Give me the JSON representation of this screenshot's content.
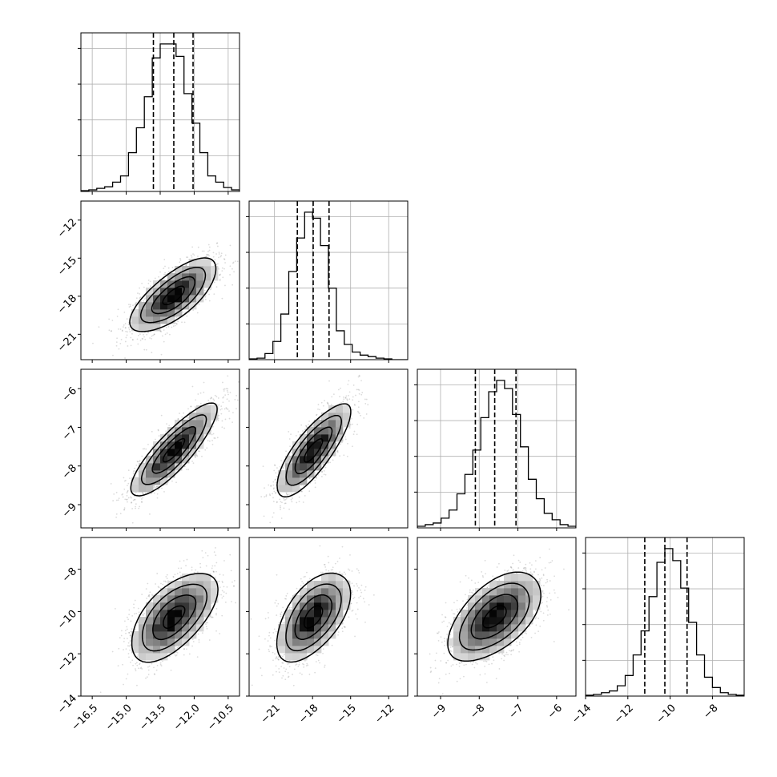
{
  "chart_data": {
    "type": "corner",
    "parameters": [
      {
        "index": 0,
        "range": [
          -17.0,
          -10.0
        ],
        "ticks": [
          -16.5,
          -15.0,
          -13.5,
          -12.0,
          -10.5
        ],
        "tick_labels": [
          "−16.5",
          "−15.0",
          "−13.5",
          "−12.0",
          "−10.5"
        ],
        "quantiles": [
          -13.8,
          -12.9,
          -12.05
        ],
        "histogram": {
          "edges_start": -17.0,
          "bin_width": 0.35,
          "counts": [
            0.5,
            1,
            2,
            3,
            6,
            10,
            25,
            41,
            61,
            86,
            95,
            95,
            87,
            63,
            44,
            25,
            10,
            6,
            2.5,
            1
          ]
        }
      },
      {
        "index": 1,
        "range": [
          -23.0,
          -10.5
        ],
        "ticks": [
          -21,
          -18,
          -15,
          -12
        ],
        "tick_labels": [
          "−21",
          "−18",
          "−15",
          "−12"
        ],
        "quantiles": [
          -19.2,
          -17.95,
          -16.7
        ],
        "histogram": {
          "edges_start": -23.0,
          "bin_width": 0.625,
          "counts": [
            0.5,
            1,
            4,
            12,
            30,
            58,
            80,
            97,
            93,
            75,
            47,
            19,
            10,
            5,
            3,
            2,
            1,
            0.5,
            0,
            0
          ]
        }
      },
      {
        "index": 2,
        "range": [
          -9.6,
          -5.5
        ],
        "ticks": [
          -9,
          -8,
          -7,
          -6
        ],
        "tick_labels": [
          "−9",
          "−8",
          "−7",
          "−6"
        ],
        "quantiles": [
          -8.1,
          -7.6,
          -7.05
        ],
        "histogram": {
          "edges_start": -9.6,
          "bin_width": 0.205,
          "counts": [
            1,
            2,
            3,
            6,
            11,
            21,
            33,
            48,
            68,
            84,
            91,
            86,
            70,
            50,
            30,
            18,
            9,
            5,
            2,
            1
          ]
        }
      },
      {
        "index": 3,
        "range": [
          -14.0,
          -6.5
        ],
        "ticks": [
          -14,
          -12,
          -10,
          -8
        ],
        "tick_labels": [
          "−14",
          "−12",
          "−10",
          "−8"
        ],
        "quantiles": [
          -11.2,
          -10.25,
          -9.2
        ],
        "histogram": {
          "edges_start": -14.0,
          "bin_width": 0.375,
          "counts": [
            0.5,
            1,
            2,
            3,
            6,
            12,
            24,
            38,
            58,
            78,
            86,
            79,
            63,
            43,
            24,
            11,
            5,
            2,
            1,
            0.5
          ]
        }
      }
    ],
    "pairs": [
      {
        "x": 0,
        "y": 1,
        "mean": [
          -12.9,
          -17.95
        ],
        "std": [
          0.95,
          1.45
        ],
        "corr": 0.72
      },
      {
        "x": 0,
        "y": 2,
        "mean": [
          -12.9,
          -7.6
        ],
        "std": [
          0.95,
          0.6
        ],
        "corr": 0.85
      },
      {
        "x": 1,
        "y": 2,
        "mean": [
          -17.95,
          -7.6
        ],
        "std": [
          1.45,
          0.6
        ],
        "corr": 0.8
      },
      {
        "x": 0,
        "y": 3,
        "mean": [
          -12.9,
          -10.25
        ],
        "std": [
          0.95,
          1.05
        ],
        "corr": 0.6
      },
      {
        "x": 1,
        "y": 3,
        "mean": [
          -17.95,
          -10.25
        ],
        "std": [
          1.45,
          1.05
        ],
        "corr": 0.55
      },
      {
        "x": 2,
        "y": 3,
        "mean": [
          -7.6,
          -10.25
        ],
        "std": [
          0.6,
          1.05
        ],
        "corr": 0.55
      }
    ],
    "contour_levels_sigma": [
      0.5,
      1.0,
      1.5,
      2.0
    ],
    "grid": true
  }
}
